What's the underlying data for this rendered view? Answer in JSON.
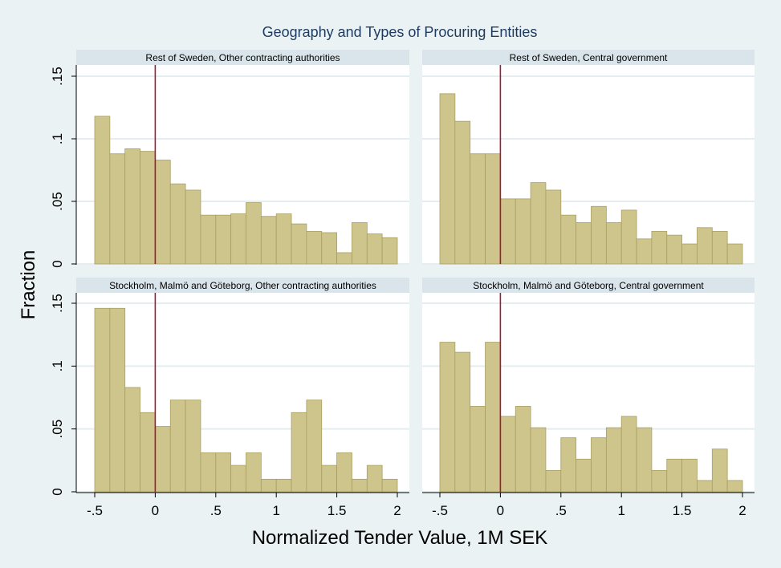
{
  "figure": {
    "title": "Geography and Types of Procuring Entities",
    "xlabel": "Normalized Tender Value, 1M SEK",
    "ylabel": "Fraction",
    "colors": {
      "background": "#eaf2f3",
      "plot_background": "#ffffff",
      "strip": "#d9e5ea",
      "bar_fill": "#cdc58c",
      "bar_stroke": "#a99e62",
      "reference_line": "#9b1b3b",
      "grid": "#e4eef0",
      "title": "#1e3a5f"
    }
  },
  "chart_data": {
    "type": "bar",
    "layout": "2x2 facet grid",
    "grid": true,
    "xticks": [
      -0.5,
      0,
      0.5,
      1,
      1.5,
      2
    ],
    "xtick_labels": [
      "-.5",
      "0",
      ".5",
      "1",
      "1.5",
      "2"
    ],
    "yticks": [
      0,
      0.05,
      0.1,
      0.15
    ],
    "ytick_labels": [
      "0",
      ".05",
      ".1",
      ".15"
    ],
    "xlim": [
      -0.6,
      2.1
    ],
    "ylim": [
      0,
      0.155
    ],
    "bin_width": 0.125,
    "bin_start": -0.5,
    "reference_line_x": 0,
    "panels": [
      {
        "name": "Rest of Sweden, Other contracting authorities",
        "values": [
          0.118,
          0.088,
          0.092,
          0.09,
          0.083,
          0.064,
          0.059,
          0.039,
          0.039,
          0.04,
          0.049,
          0.038,
          0.04,
          0.032,
          0.026,
          0.025,
          0.009,
          0.033,
          0.024,
          0.021
        ]
      },
      {
        "name": "Rest of Sweden, Central government",
        "values": [
          0.136,
          0.114,
          0.088,
          0.088,
          0.052,
          0.052,
          0.065,
          0.059,
          0.039,
          0.033,
          0.046,
          0.033,
          0.043,
          0.02,
          0.026,
          0.023,
          0.016,
          0.029,
          0.026,
          0.016
        ]
      },
      {
        "name": "Stockholm, Malmö and Göteborg, Other contracting authorities",
        "values": [
          0.146,
          0.146,
          0.083,
          0.063,
          0.052,
          0.073,
          0.073,
          0.031,
          0.031,
          0.021,
          0.031,
          0.01,
          0.01,
          0.063,
          0.073,
          0.021,
          0.031,
          0.01,
          0.021,
          0.01
        ]
      },
      {
        "name": "Stockholm, Malmö and Göteborg, Central government",
        "values": [
          0.119,
          0.111,
          0.068,
          0.119,
          0.06,
          0.068,
          0.051,
          0.017,
          0.043,
          0.026,
          0.043,
          0.051,
          0.06,
          0.051,
          0.017,
          0.026,
          0.026,
          0.009,
          0.034,
          0.009
        ]
      }
    ]
  }
}
